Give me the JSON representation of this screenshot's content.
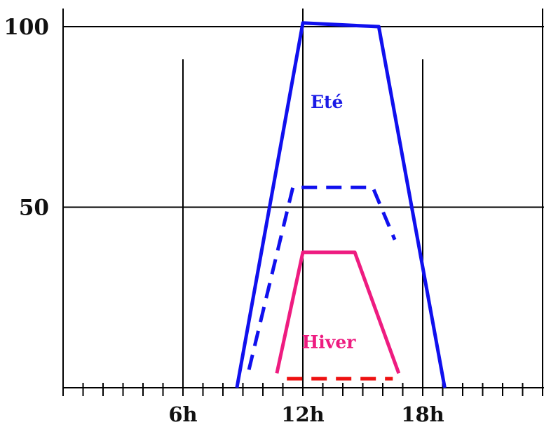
{
  "chart_data": {
    "type": "line",
    "x_range": [
      -1,
      25
    ],
    "y_range": [
      0,
      100
    ],
    "x_ticks": [
      {
        "x": 6,
        "label": "6h"
      },
      {
        "x": 12,
        "label": "12h"
      },
      {
        "x": 18,
        "label": "18h"
      }
    ],
    "y_ticks": [
      {
        "y": 50,
        "label": "50"
      },
      {
        "y": 100,
        "label": "100"
      }
    ],
    "minor_ticks_x": [
      0,
      1,
      2,
      3,
      4,
      5,
      6,
      7,
      8,
      9,
      10,
      11,
      12,
      13,
      14,
      15,
      16,
      17,
      18,
      19,
      20,
      21,
      22,
      23,
      24
    ],
    "gridlines_x": [
      {
        "x": 0,
        "y_top": 105
      },
      {
        "x": 6,
        "y_top": 91
      },
      {
        "x": 12,
        "y_top": 105
      },
      {
        "x": 18,
        "y_top": 91
      },
      {
        "x": 24,
        "y_top": 105
      }
    ],
    "gridlines_y": [
      50,
      100
    ],
    "series": [
      {
        "style": "solid",
        "color": "#1010ee",
        "points": [
          [
            8.7,
            0
          ],
          [
            12,
            101
          ],
          [
            15.8,
            100
          ],
          [
            19.1,
            0
          ]
        ]
      },
      {
        "style": "dashed",
        "color": "#1010ee",
        "points": [
          [
            9.3,
            5
          ],
          [
            11.5,
            55.5
          ],
          [
            15.5,
            55.5
          ],
          [
            16.6,
            41
          ]
        ]
      },
      {
        "style": "solid",
        "color": "#ee1c80",
        "points": [
          [
            10.7,
            4
          ],
          [
            12,
            37.5
          ],
          [
            14.6,
            37.5
          ],
          [
            16.8,
            4
          ]
        ]
      },
      {
        "style": "dashed",
        "color": "#ee1111",
        "points": [
          [
            11.2,
            2.5
          ],
          [
            16.5,
            2.5
          ]
        ]
      }
    ],
    "annotations": [
      {
        "text": "Eté",
        "x": 13.2,
        "y": 77.5,
        "color": "#1a1ae6"
      },
      {
        "text": "Hiver",
        "x": 13.3,
        "y": 11,
        "color": "#ee1c80"
      }
    ]
  }
}
